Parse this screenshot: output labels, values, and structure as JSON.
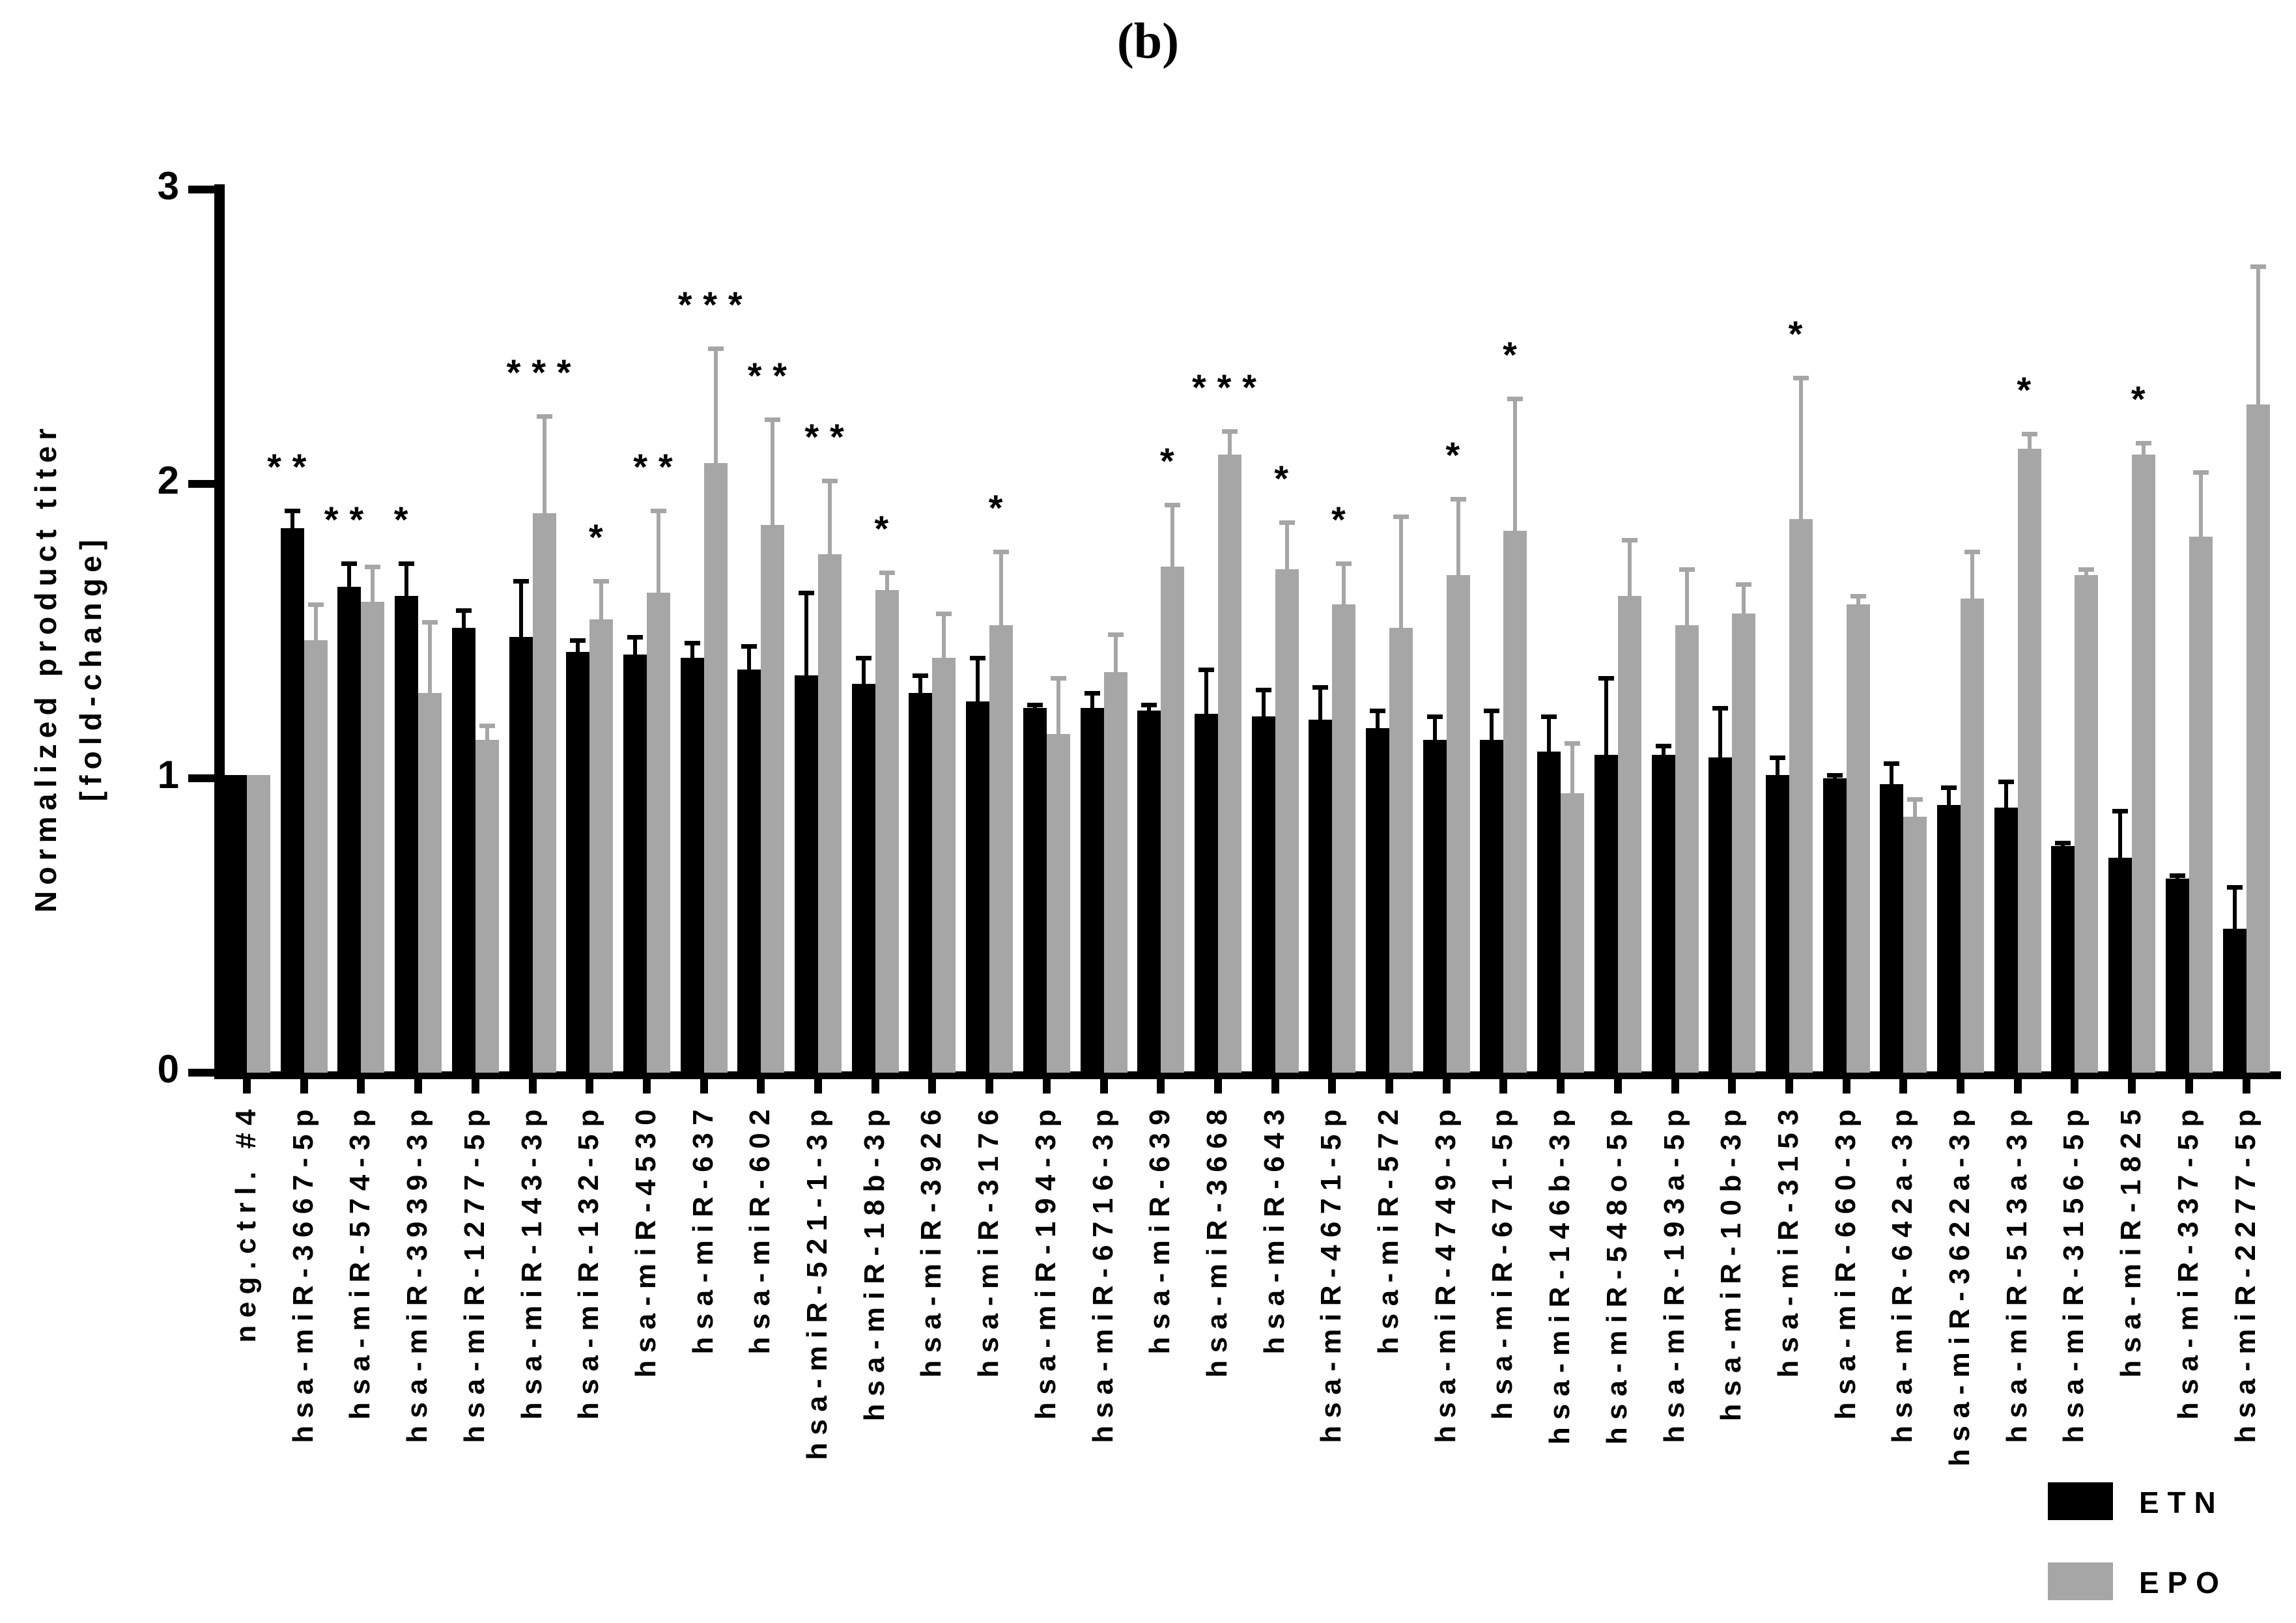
{
  "figure": {
    "panel_label": "(b)"
  },
  "colors": {
    "etn": "#000000",
    "epo": "#a6a6a6",
    "axis": "#000000",
    "background": "#ffffff"
  },
  "legend": {
    "items": [
      {
        "label": "ETN",
        "color": "#000000"
      },
      {
        "label": "EPO",
        "color": "#a6a6a6"
      }
    ]
  },
  "chart_data": {
    "type": "bar",
    "title": "(b)",
    "ylabel_lines": [
      "Normalized product titer",
      "[fold-change]"
    ],
    "xlabel": "",
    "ylim": [
      0,
      3
    ],
    "yticks": [
      0,
      1,
      2,
      3
    ],
    "grid": false,
    "legend_position": "bottom-right",
    "series_names": [
      "ETN",
      "EPO"
    ],
    "error_bars": "upper-sd",
    "significance_key": "sig marks shown above bar error caps; sig_on = which series the mark sits over",
    "groups": [
      {
        "label": "neg.ctrl. #4",
        "etn": 1.01,
        "etn_err": 0.0,
        "epo": 1.01,
        "epo_err": 0.0,
        "sig": "",
        "sig_on": ""
      },
      {
        "label": "hsa-miR-3667-5p",
        "etn": 1.85,
        "etn_err": 0.06,
        "epo": 1.47,
        "epo_err": 0.12,
        "sig": "**",
        "sig_on": "etn"
      },
      {
        "label": "hsa-miR-574-3p",
        "etn": 1.65,
        "etn_err": 0.08,
        "epo": 1.6,
        "epo_err": 0.12,
        "sig": "**",
        "sig_on": "etn"
      },
      {
        "label": "hsa-miR-3939-3p",
        "etn": 1.62,
        "etn_err": 0.11,
        "epo": 1.29,
        "epo_err": 0.24,
        "sig": "*",
        "sig_on": "etn"
      },
      {
        "label": "hsa-miR-1277-5p",
        "etn": 1.51,
        "etn_err": 0.06,
        "epo": 1.13,
        "epo_err": 0.05,
        "sig": "",
        "sig_on": ""
      },
      {
        "label": "hsa-miR-143-3p",
        "etn": 1.48,
        "etn_err": 0.19,
        "epo": 1.9,
        "epo_err": 0.33,
        "sig": "***",
        "sig_on": "epo"
      },
      {
        "label": "hsa-miR-132-5p",
        "etn": 1.43,
        "etn_err": 0.04,
        "epo": 1.54,
        "epo_err": 0.13,
        "sig": "*",
        "sig_on": "epo"
      },
      {
        "label": "hsa-miR-4530",
        "etn": 1.42,
        "etn_err": 0.06,
        "epo": 1.63,
        "epo_err": 0.28,
        "sig": "**",
        "sig_on": "epo"
      },
      {
        "label": "hsa-miR-637",
        "etn": 1.41,
        "etn_err": 0.05,
        "epo": 2.07,
        "epo_err": 0.39,
        "sig": "***",
        "sig_on": "epo"
      },
      {
        "label": "hsa-miR-602",
        "etn": 1.37,
        "etn_err": 0.08,
        "epo": 1.86,
        "epo_err": 0.36,
        "sig": "**",
        "sig_on": "epo"
      },
      {
        "label": "hsa-miR-521-1-3p",
        "etn": 1.35,
        "etn_err": 0.28,
        "epo": 1.76,
        "epo_err": 0.25,
        "sig": "**",
        "sig_on": "epo"
      },
      {
        "label": "hsa-miR-18b-3p",
        "etn": 1.32,
        "etn_err": 0.09,
        "epo": 1.64,
        "epo_err": 0.06,
        "sig": "*",
        "sig_on": "epo"
      },
      {
        "label": "hsa-miR-3926",
        "etn": 1.29,
        "etn_err": 0.06,
        "epo": 1.41,
        "epo_err": 0.15,
        "sig": "",
        "sig_on": ""
      },
      {
        "label": "hsa-miR-3176",
        "etn": 1.26,
        "etn_err": 0.15,
        "epo": 1.52,
        "epo_err": 0.25,
        "sig": "*",
        "sig_on": "epo"
      },
      {
        "label": "hsa-miR-194-3p",
        "etn": 1.24,
        "etn_err": 0.01,
        "epo": 1.15,
        "epo_err": 0.19,
        "sig": "",
        "sig_on": ""
      },
      {
        "label": "hsa-miR-6716-3p",
        "etn": 1.24,
        "etn_err": 0.05,
        "epo": 1.36,
        "epo_err": 0.13,
        "sig": "",
        "sig_on": ""
      },
      {
        "label": "hsa-miR-639",
        "etn": 1.23,
        "etn_err": 0.02,
        "epo": 1.72,
        "epo_err": 0.21,
        "sig": "*",
        "sig_on": "epo"
      },
      {
        "label": "hsa-miR-3668",
        "etn": 1.22,
        "etn_err": 0.15,
        "epo": 2.1,
        "epo_err": 0.08,
        "sig": "***",
        "sig_on": "epo"
      },
      {
        "label": "hsa-miR-643",
        "etn": 1.21,
        "etn_err": 0.09,
        "epo": 1.71,
        "epo_err": 0.16,
        "sig": "*",
        "sig_on": "epo"
      },
      {
        "label": "hsa-miR-4671-5p",
        "etn": 1.2,
        "etn_err": 0.11,
        "epo": 1.59,
        "epo_err": 0.14,
        "sig": "*",
        "sig_on": "epo"
      },
      {
        "label": "hsa-miR-572",
        "etn": 1.17,
        "etn_err": 0.06,
        "epo": 1.51,
        "epo_err": 0.38,
        "sig": "",
        "sig_on": ""
      },
      {
        "label": "hsa-miR-4749-3p",
        "etn": 1.13,
        "etn_err": 0.08,
        "epo": 1.69,
        "epo_err": 0.26,
        "sig": "*",
        "sig_on": "epo"
      },
      {
        "label": "hsa-miR-671-5p",
        "etn": 1.13,
        "etn_err": 0.1,
        "epo": 1.84,
        "epo_err": 0.45,
        "sig": "*",
        "sig_on": "epo"
      },
      {
        "label": "hsa-miR-146b-3p",
        "etn": 1.09,
        "etn_err": 0.12,
        "epo": 0.95,
        "epo_err": 0.17,
        "sig": "",
        "sig_on": ""
      },
      {
        "label": "hsa-miR-548o-5p",
        "etn": 1.08,
        "etn_err": 0.26,
        "epo": 1.62,
        "epo_err": 0.19,
        "sig": "",
        "sig_on": ""
      },
      {
        "label": "hsa-miR-193a-5p",
        "etn": 1.08,
        "etn_err": 0.03,
        "epo": 1.52,
        "epo_err": 0.19,
        "sig": "",
        "sig_on": ""
      },
      {
        "label": "hsa-miR-10b-3p",
        "etn": 1.07,
        "etn_err": 0.17,
        "epo": 1.56,
        "epo_err": 0.1,
        "sig": "",
        "sig_on": ""
      },
      {
        "label": "hsa-miR-3153",
        "etn": 1.01,
        "etn_err": 0.06,
        "epo": 1.88,
        "epo_err": 0.48,
        "sig": "*",
        "sig_on": "epo"
      },
      {
        "label": "hsa-miR-660-3p",
        "etn": 1.0,
        "etn_err": 0.01,
        "epo": 1.59,
        "epo_err": 0.03,
        "sig": "",
        "sig_on": ""
      },
      {
        "label": "hsa-miR-642a-3p",
        "etn": 0.98,
        "etn_err": 0.07,
        "epo": 0.87,
        "epo_err": 0.06,
        "sig": "",
        "sig_on": ""
      },
      {
        "label": "hsa-miR-3622a-3p",
        "etn": 0.91,
        "etn_err": 0.06,
        "epo": 1.61,
        "epo_err": 0.16,
        "sig": "",
        "sig_on": ""
      },
      {
        "label": "hsa-miR-513a-3p",
        "etn": 0.9,
        "etn_err": 0.09,
        "epo": 2.12,
        "epo_err": 0.05,
        "sig": "*",
        "sig_on": "epo"
      },
      {
        "label": "hsa-miR-3156-5p",
        "etn": 0.77,
        "etn_err": 0.01,
        "epo": 1.69,
        "epo_err": 0.02,
        "sig": "",
        "sig_on": ""
      },
      {
        "label": "hsa-miR-1825",
        "etn": 0.73,
        "etn_err": 0.16,
        "epo": 2.1,
        "epo_err": 0.04,
        "sig": "*",
        "sig_on": "epo"
      },
      {
        "label": "hsa-miR-337-5p",
        "etn": 0.66,
        "etn_err": 0.01,
        "epo": 1.82,
        "epo_err": 0.22,
        "sig": "",
        "sig_on": ""
      },
      {
        "label": "hsa-miR-2277-5p",
        "etn": 0.49,
        "etn_err": 0.14,
        "epo": 2.27,
        "epo_err": 0.47,
        "sig": "",
        "sig_on": ""
      }
    ]
  }
}
